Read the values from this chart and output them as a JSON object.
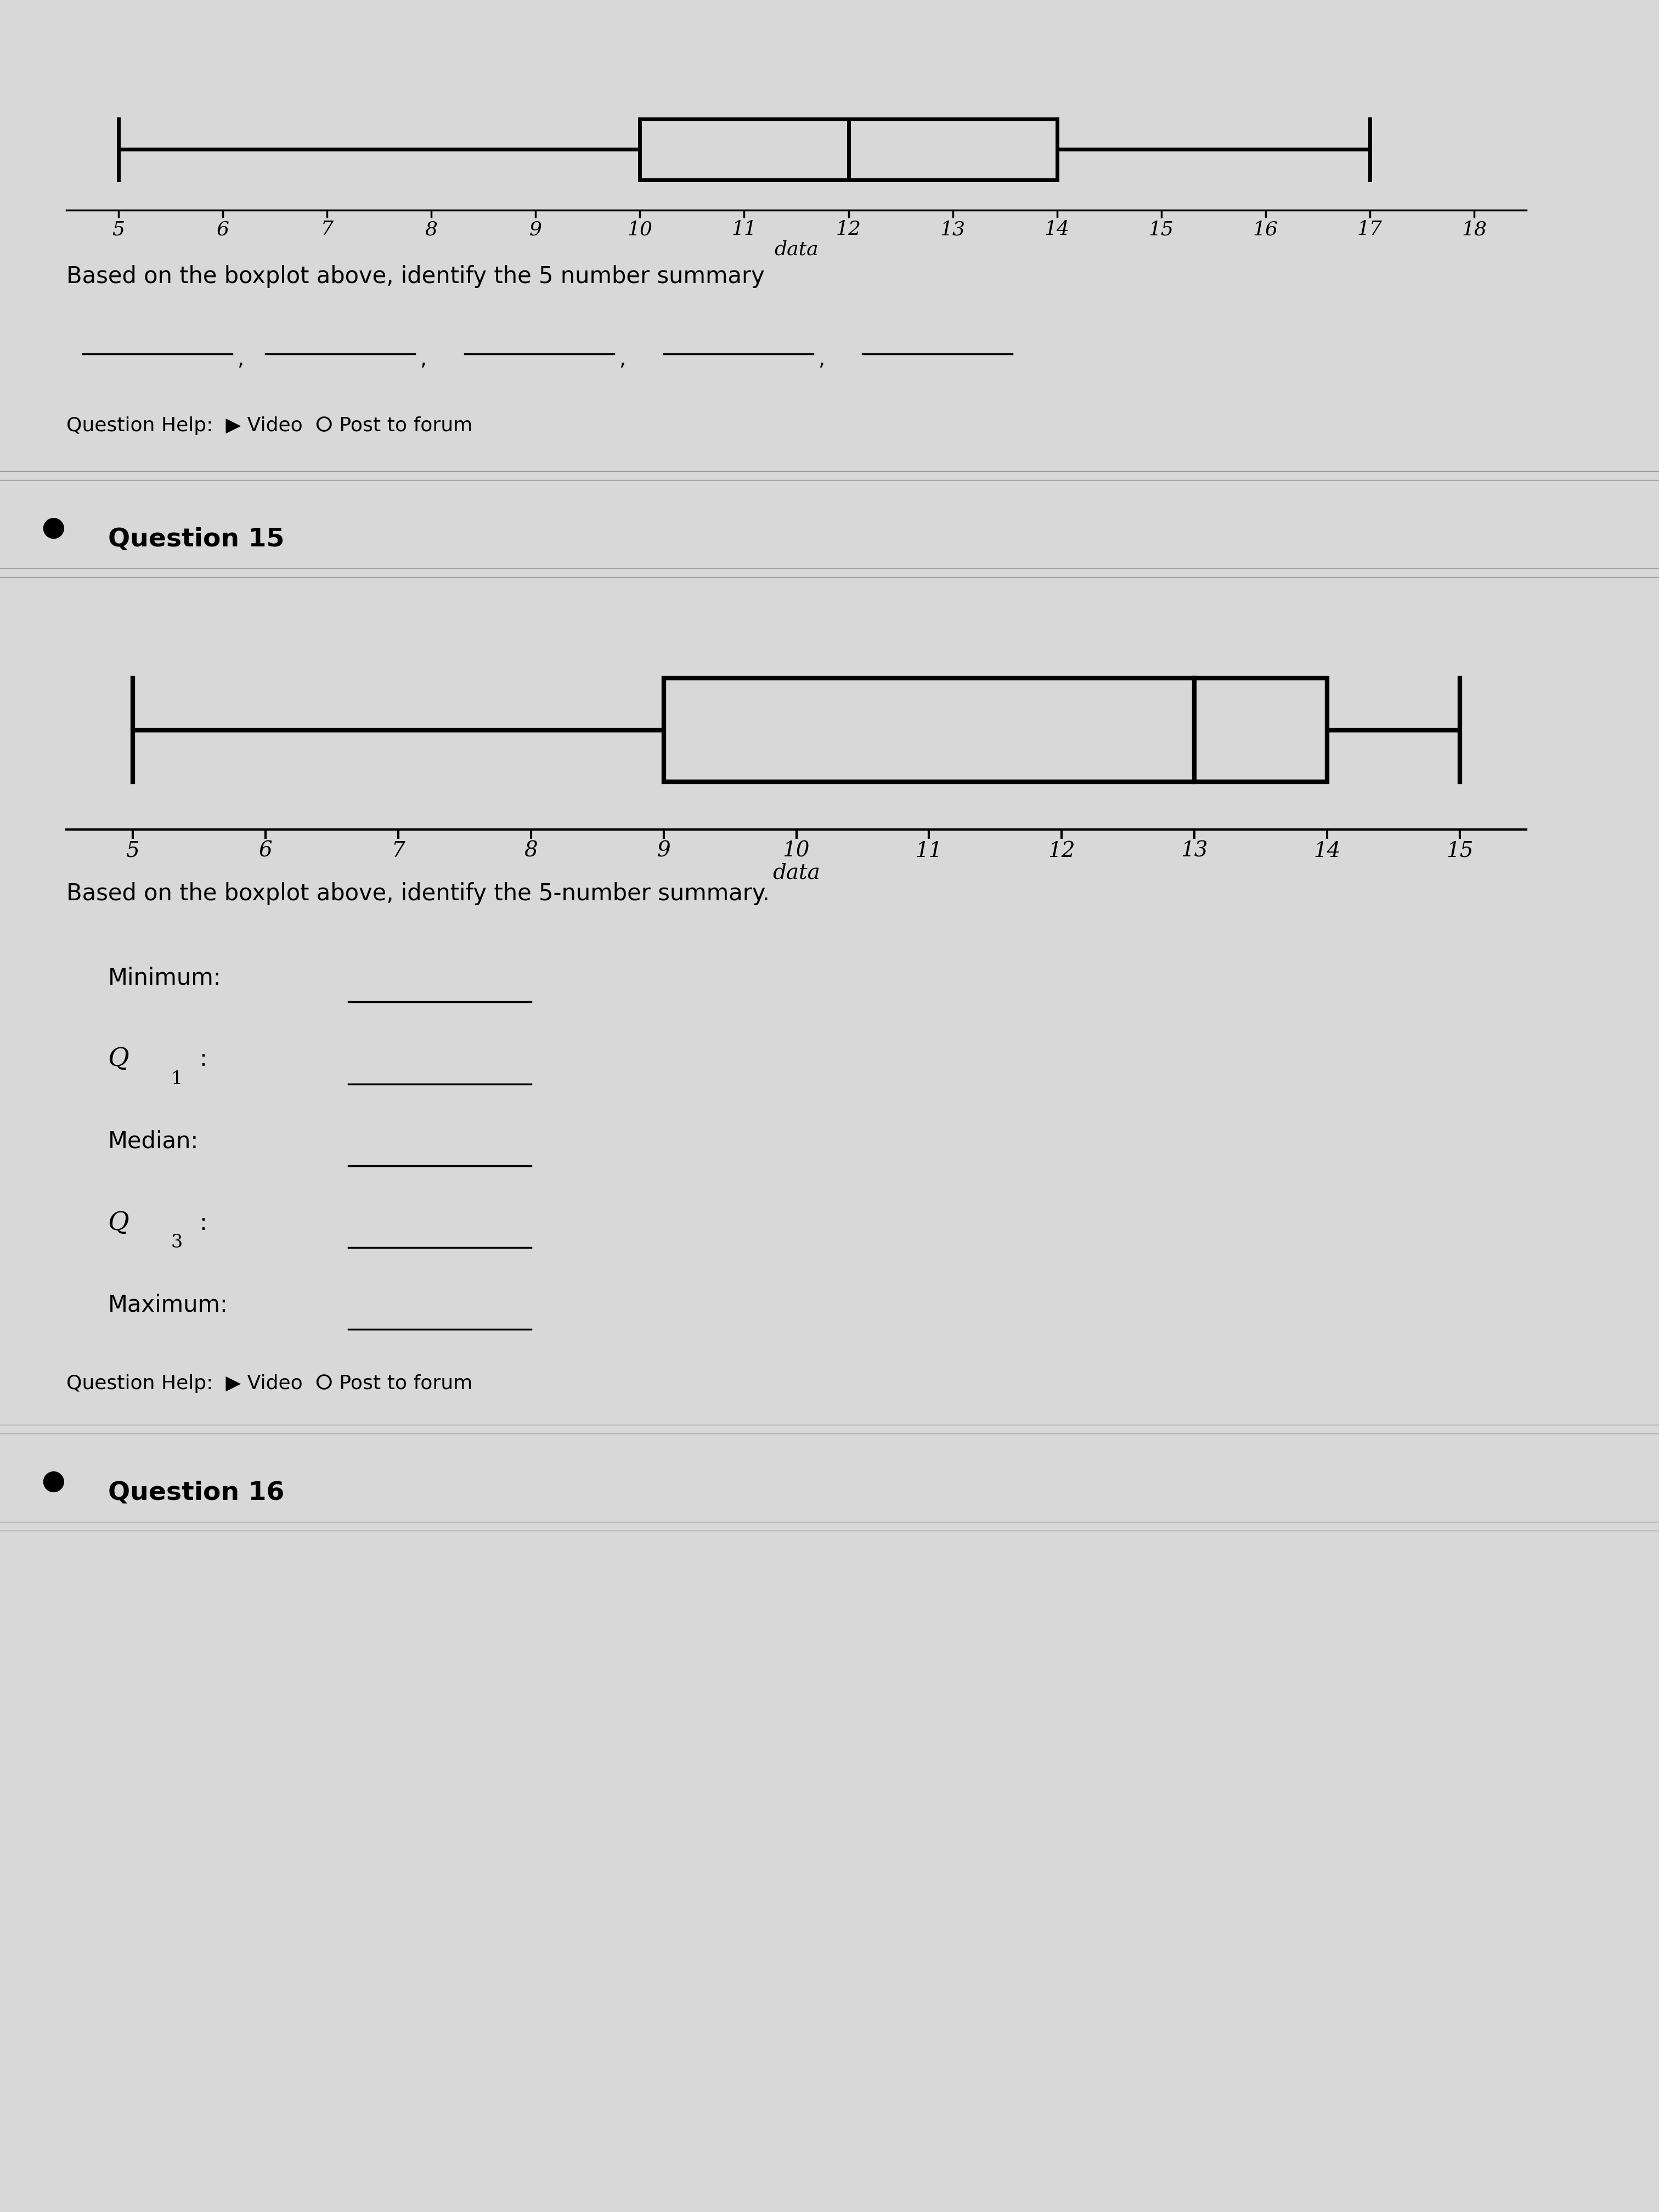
{
  "bg_color": "#d8d8d8",
  "page_color": "#f0f0f0",
  "top_boxplot": {
    "min_val": 5,
    "q1": 10,
    "median": 12,
    "q3": 14,
    "max_val": 17,
    "axis_min": 4.5,
    "axis_max": 18.5,
    "ticks": [
      5,
      6,
      7,
      8,
      9,
      10,
      11,
      12,
      13,
      14,
      15,
      16,
      17,
      18
    ],
    "xlabel": "data"
  },
  "q15_boxplot": {
    "min_val": 5,
    "q1": 9,
    "median": 13,
    "q3": 14,
    "max_val": 15,
    "axis_min": 4.5,
    "axis_max": 15.5,
    "ticks": [
      5,
      6,
      7,
      8,
      9,
      10,
      11,
      12,
      13,
      14,
      15
    ],
    "xlabel": "data"
  },
  "top_question_text": "Based on the boxplot above, identify the 5 number summary",
  "q15_question_text": "Based on the boxplot above, identify the 5-number summary.",
  "question15_header": "Question 15",
  "question16_header": "Question 16"
}
